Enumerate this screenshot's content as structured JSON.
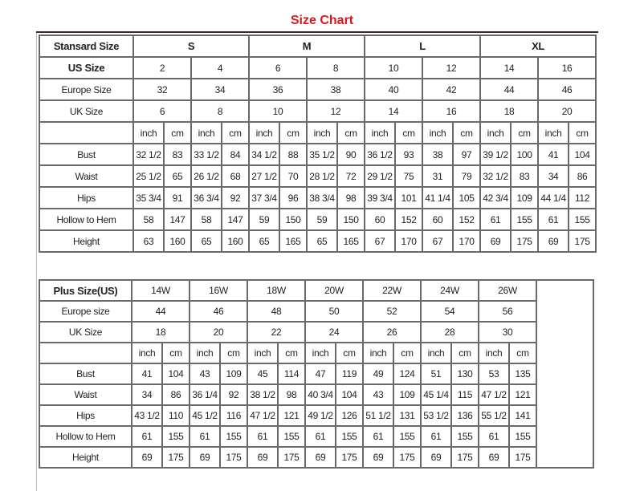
{
  "title": "Size Chart",
  "standard": {
    "header_label": "Stansard Size",
    "groups": [
      "S",
      "M",
      "L",
      "XL"
    ],
    "us_label": "US Size",
    "us": [
      "2",
      "4",
      "6",
      "8",
      "10",
      "12",
      "14",
      "16"
    ],
    "europe_label": "Europe Size",
    "europe": [
      "32",
      "34",
      "36",
      "38",
      "40",
      "42",
      "44",
      "46"
    ],
    "uk_label": "UK Size",
    "uk": [
      "6",
      "8",
      "10",
      "12",
      "14",
      "16",
      "18",
      "20"
    ],
    "unit_inch": "inch",
    "unit_cm": "cm",
    "measures": [
      {
        "label": "Bust",
        "values": [
          "32 1/2",
          "83",
          "33 1/2",
          "84",
          "34 1/2",
          "88",
          "35 1/2",
          "90",
          "36 1/2",
          "93",
          "38",
          "97",
          "39 1/2",
          "100",
          "41",
          "104"
        ]
      },
      {
        "label": "Waist",
        "values": [
          "25 1/2",
          "65",
          "26 1/2",
          "68",
          "27 1/2",
          "70",
          "28 1/2",
          "72",
          "29 1/2",
          "75",
          "31",
          "79",
          "32 1/2",
          "83",
          "34",
          "86"
        ]
      },
      {
        "label": "Hips",
        "values": [
          "35 3/4",
          "91",
          "36 3/4",
          "92",
          "37 3/4",
          "96",
          "38 3/4",
          "98",
          "39 3/4",
          "101",
          "41 1/4",
          "105",
          "42 3/4",
          "109",
          "44 1/4",
          "112"
        ]
      },
      {
        "label": "Hollow to Hem",
        "values": [
          "58",
          "147",
          "58",
          "147",
          "59",
          "150",
          "59",
          "150",
          "60",
          "152",
          "60",
          "152",
          "61",
          "155",
          "61",
          "155"
        ]
      },
      {
        "label": "Height",
        "values": [
          "63",
          "160",
          "65",
          "160",
          "65",
          "165",
          "65",
          "165",
          "67",
          "170",
          "67",
          "170",
          "69",
          "175",
          "69",
          "175"
        ]
      }
    ]
  },
  "plus": {
    "header_label": "Plus Size(US)",
    "sizes": [
      "14W",
      "16W",
      "18W",
      "20W",
      "22W",
      "24W",
      "26W"
    ],
    "europe_label": "Europe size",
    "europe": [
      "44",
      "46",
      "48",
      "50",
      "52",
      "54",
      "56"
    ],
    "uk_label": "UK Size",
    "uk": [
      "18",
      "20",
      "22",
      "24",
      "26",
      "28",
      "30"
    ],
    "unit_inch": "inch",
    "unit_cm": "cm",
    "measures": [
      {
        "label": "Bust",
        "values": [
          "41",
          "104",
          "43",
          "109",
          "45",
          "114",
          "47",
          "119",
          "49",
          "124",
          "51",
          "130",
          "53",
          "135"
        ]
      },
      {
        "label": "Waist",
        "values": [
          "34",
          "86",
          "36 1/4",
          "92",
          "38 1/2",
          "98",
          "40 3/4",
          "104",
          "43",
          "109",
          "45 1/4",
          "115",
          "47 1/2",
          "121"
        ]
      },
      {
        "label": "Hips",
        "values": [
          "43 1/2",
          "110",
          "45 1/2",
          "116",
          "47 1/2",
          "121",
          "49 1/2",
          "126",
          "51 1/2",
          "131",
          "53 1/2",
          "136",
          "55 1/2",
          "141"
        ]
      },
      {
        "label": "Hollow to Hem",
        "values": [
          "61",
          "155",
          "61",
          "155",
          "61",
          "155",
          "61",
          "155",
          "61",
          "155",
          "61",
          "155",
          "61",
          "155"
        ]
      },
      {
        "label": "Height",
        "values": [
          "69",
          "175",
          "69",
          "175",
          "69",
          "175",
          "69",
          "175",
          "69",
          "175",
          "69",
          "175",
          "69",
          "175"
        ]
      }
    ]
  }
}
